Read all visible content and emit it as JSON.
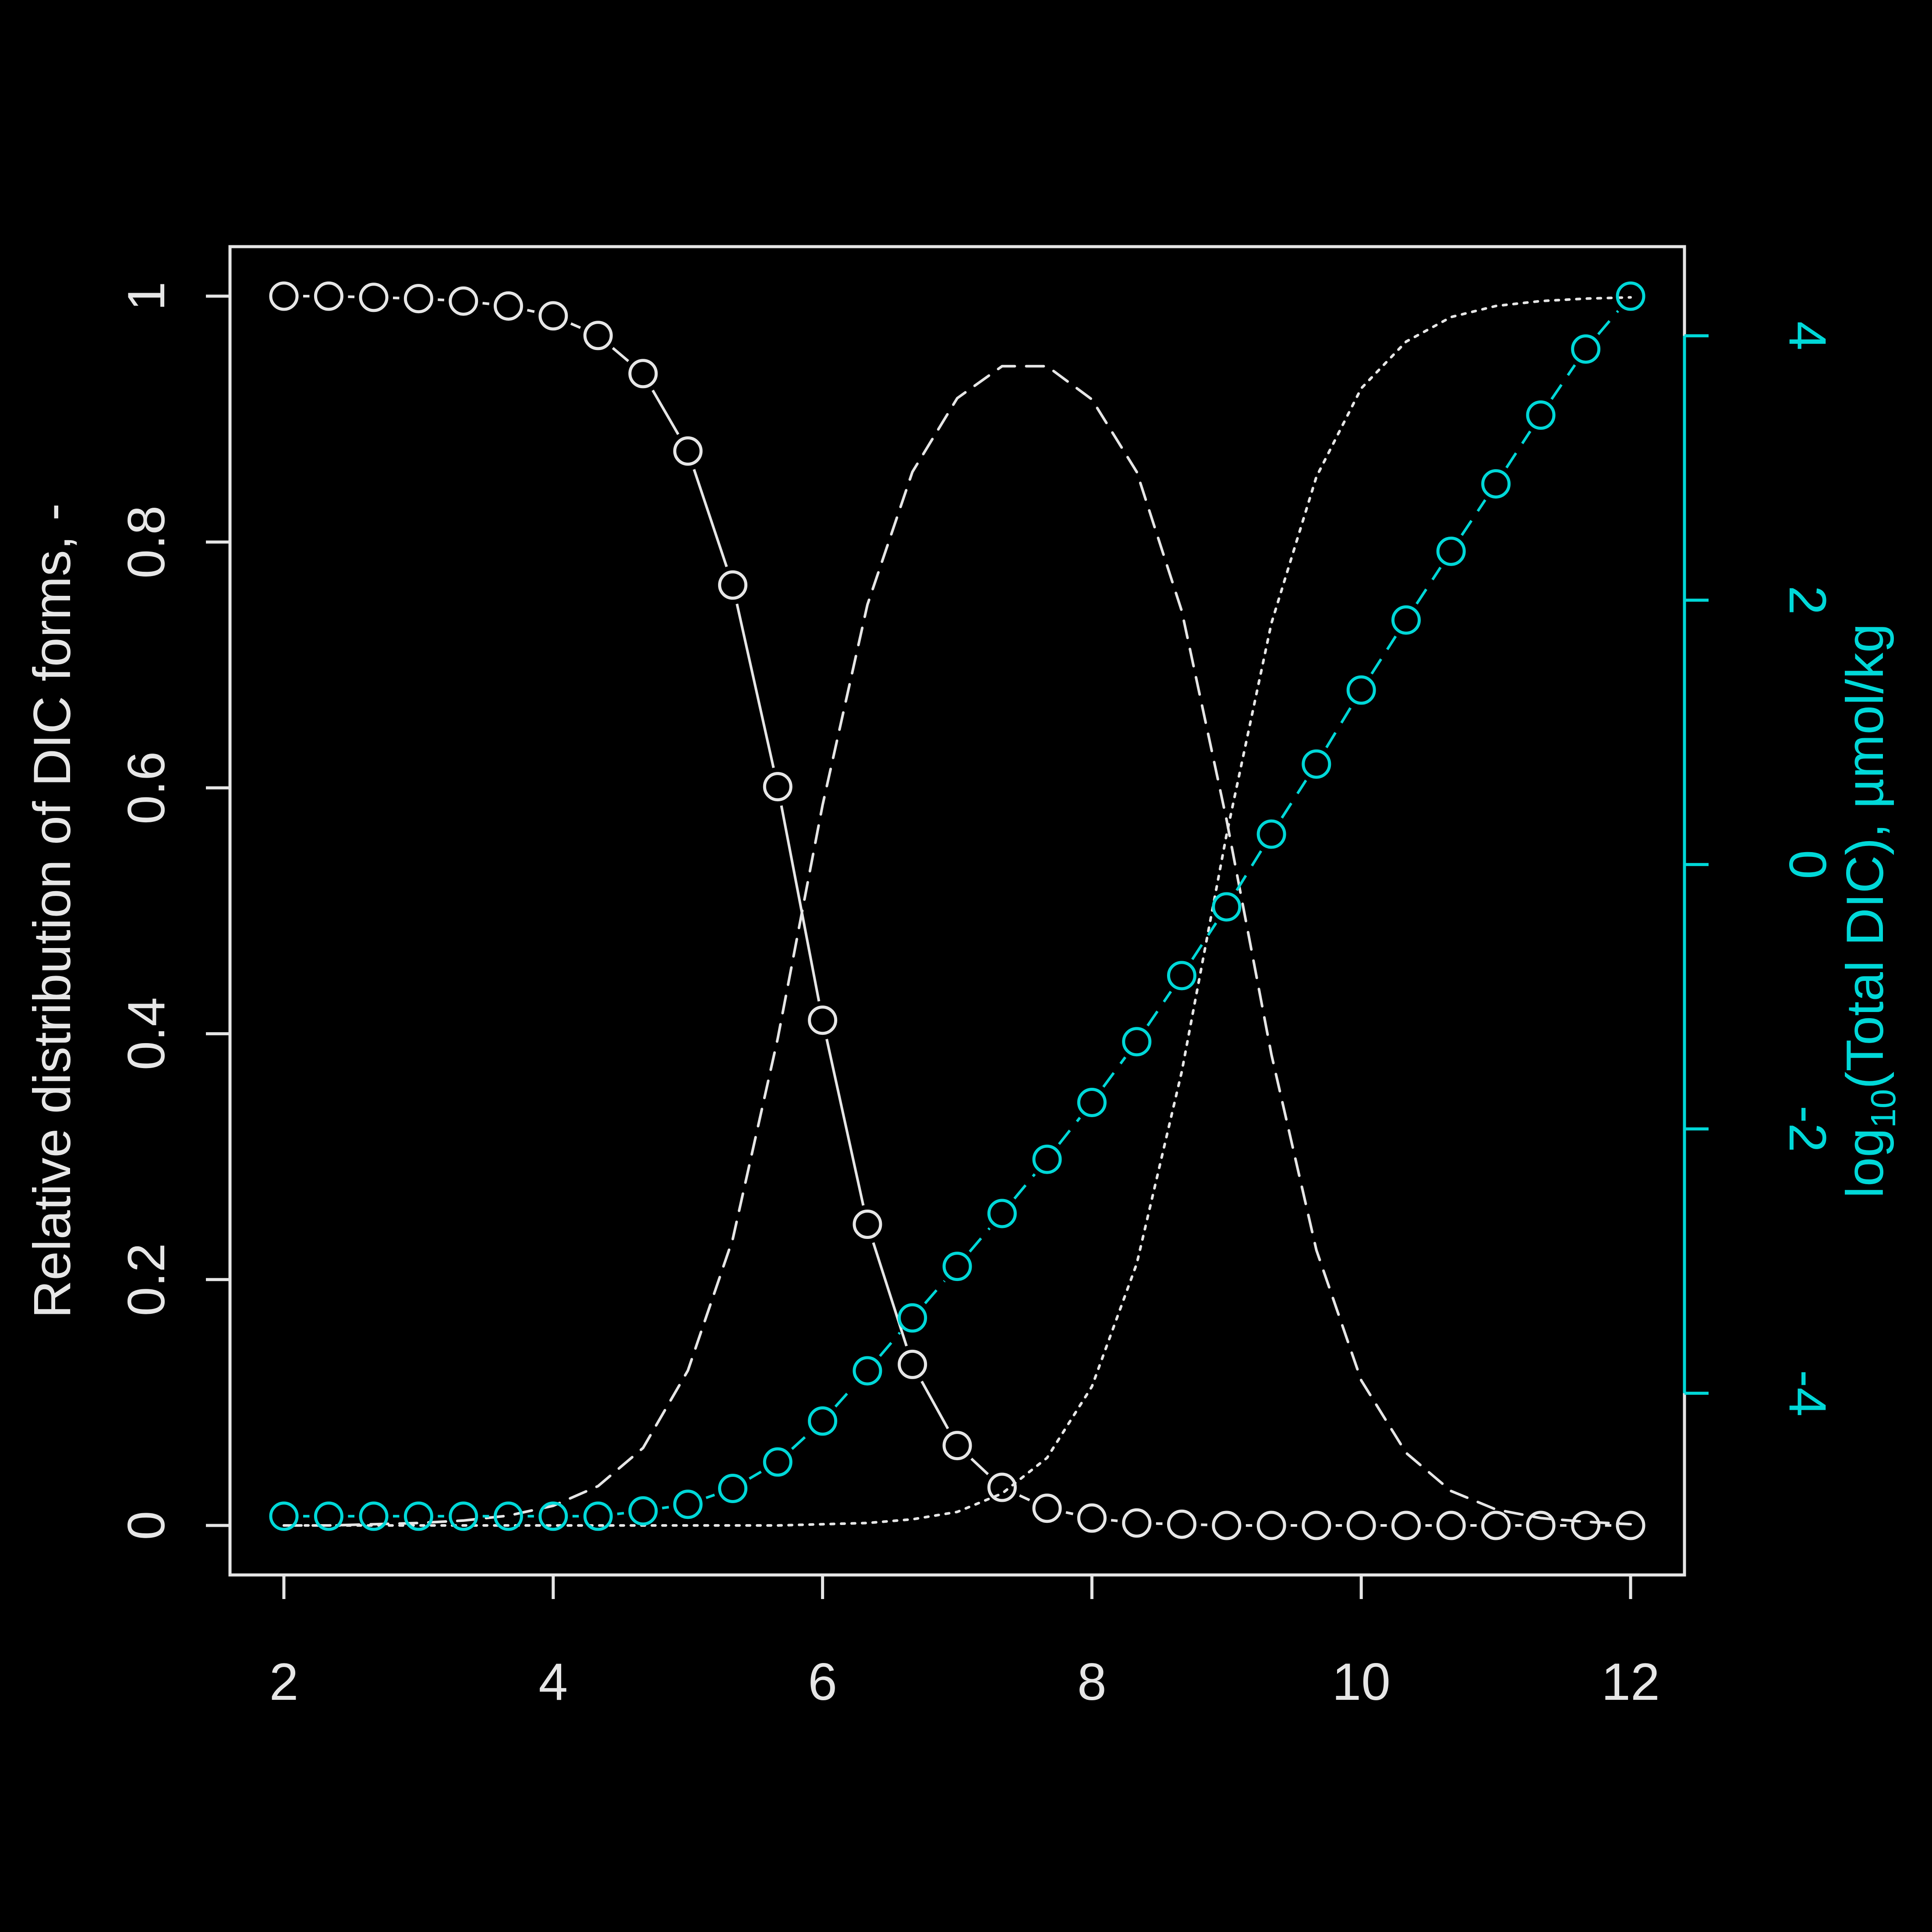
{
  "chart_data": {
    "type": "line",
    "x": [
      2,
      2.333,
      2.667,
      3,
      3.333,
      3.667,
      4,
      4.333,
      4.667,
      5,
      5.333,
      5.667,
      6,
      6.333,
      6.667,
      7,
      7.333,
      7.667,
      8,
      8.333,
      8.667,
      9,
      9.333,
      9.667,
      10,
      10.333,
      10.667,
      11,
      11.333,
      11.667,
      12
    ],
    "xlim": [
      2,
      12
    ],
    "x_ticks": [
      "2",
      "4",
      "6",
      "8",
      "10",
      "12"
    ],
    "x_tick_values": [
      2,
      4,
      6,
      8,
      10,
      12
    ],
    "xlabel": "",
    "ylabel": "Relative distribution of DIC forms, -",
    "ylim": [
      0,
      1
    ],
    "y_ticks": [
      "0",
      "0.2",
      "0.4",
      "0.6",
      "0.8",
      "1"
    ],
    "y_tick_values": [
      0,
      0.2,
      0.4,
      0.6,
      0.8,
      1
    ],
    "y2label_prefix": "log",
    "y2label_sub": "10",
    "y2label_suffix": "(Total DIC), µmol/kg",
    "y2lim": [
      -5,
      4.3
    ],
    "y2_ticks": [
      "-4",
      "-2",
      "0",
      "2",
      "4"
    ],
    "y2_tick_values": [
      -4,
      -2,
      0,
      2,
      4
    ],
    "grid": false,
    "colors": {
      "background": "#000000",
      "main": "#e6e6e6",
      "secondary_axis": "#00d8d8"
    },
    "series": [
      {
        "style": "points+solid",
        "axis": "left",
        "values": [
          1.0,
          1.0,
          0.999,
          0.998,
          0.996,
          0.992,
          0.984,
          0.968,
          0.937,
          0.874,
          0.765,
          0.601,
          0.411,
          0.245,
          0.131,
          0.065,
          0.031,
          0.014,
          0.006,
          0.002,
          0.001,
          0.0,
          0.0,
          0.0,
          0.0,
          0.0,
          0.0,
          0.0,
          0.0,
          0.0,
          0.0
        ]
      },
      {
        "style": "dashed",
        "axis": "left",
        "values": [
          0.0,
          0.0,
          0.001,
          0.002,
          0.004,
          0.008,
          0.016,
          0.032,
          0.063,
          0.126,
          0.233,
          0.396,
          0.586,
          0.749,
          0.857,
          0.917,
          0.943,
          0.943,
          0.916,
          0.857,
          0.744,
          0.574,
          0.383,
          0.224,
          0.118,
          0.059,
          0.028,
          0.013,
          0.006,
          0.003,
          0.001
        ]
      },
      {
        "style": "dotted",
        "axis": "left",
        "values": [
          0.0,
          0.0,
          0.0,
          0.0,
          0.0,
          0.0,
          0.0,
          0.0,
          0.0,
          0.0,
          0.0,
          0.0,
          0.001,
          0.002,
          0.005,
          0.011,
          0.026,
          0.055,
          0.113,
          0.213,
          0.369,
          0.562,
          0.734,
          0.853,
          0.925,
          0.963,
          0.983,
          0.992,
          0.996,
          0.998,
          0.999
        ]
      },
      {
        "style": "points+dashed",
        "axis": "right",
        "values": [
          -4.93,
          -4.93,
          -4.93,
          -4.93,
          -4.93,
          -4.93,
          -4.93,
          -4.93,
          -4.89,
          -4.84,
          -4.72,
          -4.52,
          -4.21,
          -3.83,
          -3.43,
          -3.04,
          -2.64,
          -2.23,
          -1.8,
          -1.34,
          -0.84,
          -0.32,
          0.23,
          0.76,
          1.32,
          1.85,
          2.37,
          2.88,
          3.4,
          3.9,
          4.3
        ]
      }
    ]
  }
}
